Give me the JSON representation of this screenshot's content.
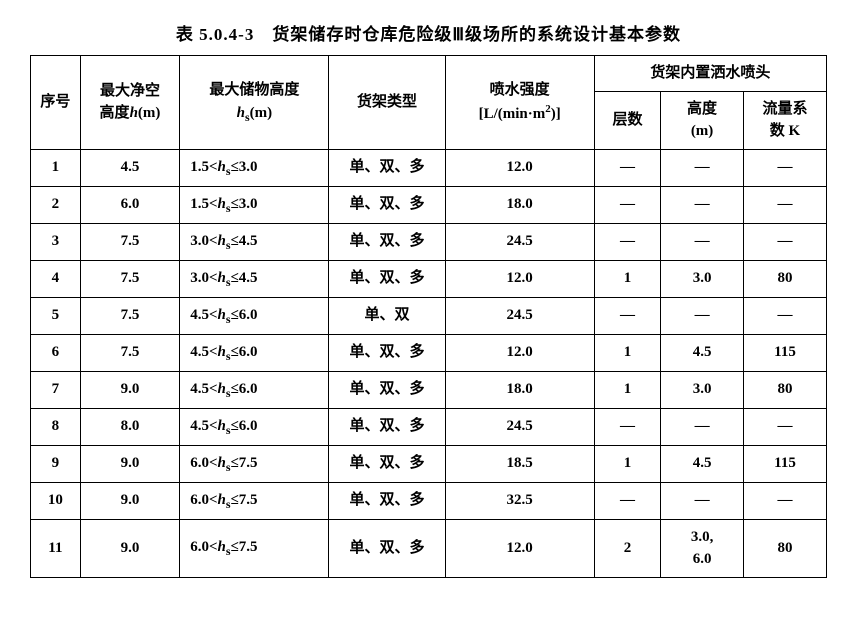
{
  "caption": "表 5.0.4-3　货架储存时仓库危险级Ⅲ级场所的系统设计基本参数",
  "headers": {
    "seq": "序号",
    "h_label_line1": "最大净空",
    "h_label_line2_prefix": "高度",
    "h_var": "h",
    "h_unit": "(m)",
    "hs_label": "最大储物高度",
    "hs_var": "h",
    "hs_sub": "s",
    "hs_unit": "(m)",
    "rack_type": "货架类型",
    "intensity_label": "喷水强度",
    "intensity_unit_prefix": "[L/(min·m",
    "intensity_unit_sup": "2",
    "intensity_unit_suffix": ")]",
    "inrack_group": "货架内置洒水喷头",
    "layers": "层数",
    "height_label": "高度",
    "height_unit": "(m)",
    "k_label_line1": "流量系",
    "k_label_line2": "数 K"
  },
  "hs_ranges": {
    "r1": {
      "lo": "1.5",
      "hi": "3.0"
    },
    "r2": {
      "lo": "3.0",
      "hi": "4.5"
    },
    "r3": {
      "lo": "4.5",
      "hi": "6.0"
    },
    "r4": {
      "lo": "6.0",
      "hi": "7.5"
    }
  },
  "rows": [
    {
      "seq": "1",
      "h": "4.5",
      "hs_key": "r1",
      "type": "单、双、多",
      "intensity": "12.0",
      "layers": "—",
      "height": "—",
      "k": "—"
    },
    {
      "seq": "2",
      "h": "6.0",
      "hs_key": "r1",
      "type": "单、双、多",
      "intensity": "18.0",
      "layers": "—",
      "height": "—",
      "k": "—"
    },
    {
      "seq": "3",
      "h": "7.5",
      "hs_key": "r2",
      "type": "单、双、多",
      "intensity": "24.5",
      "layers": "—",
      "height": "—",
      "k": "—"
    },
    {
      "seq": "4",
      "h": "7.5",
      "hs_key": "r2",
      "type": "单、双、多",
      "intensity": "12.0",
      "layers": "1",
      "height": "3.0",
      "k": "80"
    },
    {
      "seq": "5",
      "h": "7.5",
      "hs_key": "r3",
      "type": "单、双",
      "intensity": "24.5",
      "layers": "—",
      "height": "—",
      "k": "—"
    },
    {
      "seq": "6",
      "h": "7.5",
      "hs_key": "r3",
      "type": "单、双、多",
      "intensity": "12.0",
      "layers": "1",
      "height": "4.5",
      "k": "115"
    },
    {
      "seq": "7",
      "h": "9.0",
      "hs_key": "r3",
      "type": "单、双、多",
      "intensity": "18.0",
      "layers": "1",
      "height": "3.0",
      "k": "80"
    },
    {
      "seq": "8",
      "h": "8.0",
      "hs_key": "r3",
      "type": "单、双、多",
      "intensity": "24.5",
      "layers": "—",
      "height": "—",
      "k": "—"
    },
    {
      "seq": "9",
      "h": "9.0",
      "hs_key": "r4",
      "type": "单、双、多",
      "intensity": "18.5",
      "layers": "1",
      "height": "4.5",
      "k": "115"
    },
    {
      "seq": "10",
      "h": "9.0",
      "hs_key": "r4",
      "type": "单、双、多",
      "intensity": "32.5",
      "layers": "—",
      "height": "—",
      "k": "—"
    },
    {
      "seq": "11",
      "h": "9.0",
      "hs_key": "r4",
      "type": "单、双、多",
      "intensity": "12.0",
      "layers": "2",
      "height": "3.0,\n6.0",
      "k": "80"
    }
  ],
  "style": {
    "font_family": "SimSun",
    "border_color": "#000000",
    "background": "#ffffff",
    "text_color": "#000000",
    "caption_fontsize": 17,
    "cell_fontsize": 15
  }
}
